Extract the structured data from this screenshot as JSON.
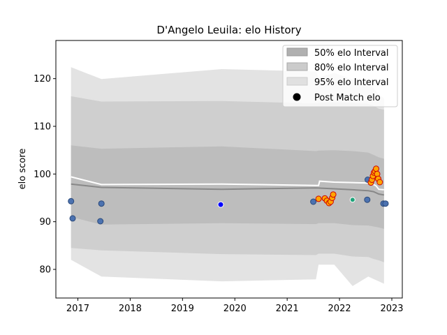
{
  "chart_data": {
    "type": "area",
    "title": "D'Angelo Leuila: elo History",
    "xlabel": "",
    "ylabel": "elo score",
    "xlim": [
      2016.58,
      2023.2
    ],
    "ylim": [
      74,
      128
    ],
    "x_ticks": [
      2017,
      2018,
      2019,
      2020,
      2021,
      2022,
      2023
    ],
    "y_ticks": [
      80,
      90,
      100,
      110,
      120
    ],
    "legend": {
      "placement": "top-right",
      "entries": [
        "50% elo Interval",
        "80% elo Interval",
        "95% elo Interval",
        "Post Match elo"
      ]
    },
    "bands": [
      {
        "name": "95% elo Interval",
        "color": "#e3e3e3",
        "x": [
          2016.87,
          2017.45,
          2019.75,
          2021.55,
          2021.6,
          2021.9,
          2022.25,
          2022.55,
          2022.65,
          2022.75,
          2022.85
        ],
        "upper": [
          122.4,
          119.9,
          122.0,
          121.5,
          120.2,
          121.2,
          119.8,
          118.8,
          118.0,
          116.6,
          115.9
        ],
        "lower": [
          82.0,
          78.5,
          77.5,
          77.9,
          81.0,
          81.0,
          76.5,
          78.5,
          78.0,
          77.5,
          77.0
        ]
      },
      {
        "name": "80% elo Interval",
        "color": "#cfcfcf",
        "x": [
          2016.87,
          2017.45,
          2019.75,
          2021.55,
          2021.6,
          2021.9,
          2022.25,
          2022.55,
          2022.65,
          2022.75,
          2022.85
        ],
        "upper": [
          116.3,
          115.2,
          115.3,
          114.8,
          114.9,
          115.0,
          114.9,
          114.7,
          114.3,
          113.7,
          113.5
        ],
        "lower": [
          84.5,
          84.0,
          83.2,
          83.0,
          83.3,
          83.3,
          82.7,
          82.6,
          82.2,
          81.9,
          81.5
        ]
      },
      {
        "name": "50% elo Interval",
        "color": "#bdbdbd",
        "x": [
          2016.87,
          2017.45,
          2019.75,
          2021.55,
          2021.6,
          2021.9,
          2022.25,
          2022.55,
          2022.65,
          2022.75,
          2022.85
        ],
        "upper": [
          106.0,
          105.3,
          105.8,
          104.8,
          104.9,
          105.0,
          104.8,
          104.5,
          104.0,
          103.5,
          103.2
        ],
        "lower": [
          91.0,
          89.4,
          89.7,
          89.5,
          89.7,
          89.7,
          89.3,
          89.2,
          89.0,
          88.8,
          88.5
        ]
      }
    ],
    "lines": [
      {
        "name": "mean",
        "color": "#ffffff",
        "x": [
          2016.87,
          2017.45,
          2019.75,
          2021.55,
          2021.6,
          2021.62,
          2021.9,
          2022.25,
          2022.55,
          2022.62,
          2022.7,
          2022.75,
          2022.85
        ],
        "y": [
          99.4,
          97.8,
          97.9,
          97.6,
          97.6,
          98.5,
          98.3,
          98.2,
          98.1,
          98.0,
          97.5,
          96.8,
          96.7
        ]
      },
      {
        "name": "median",
        "color": "#888888",
        "x": [
          2016.87,
          2017.45,
          2019.75,
          2021.55,
          2021.9,
          2022.25,
          2022.55,
          2022.65,
          2022.75,
          2022.85
        ],
        "y": [
          97.9,
          97.2,
          96.8,
          97.1,
          96.9,
          96.7,
          96.5,
          96.3,
          95.8,
          95.6
        ]
      }
    ],
    "points": [
      {
        "x": 2016.87,
        "y": 94.3,
        "color": "#4c72b0",
        "edge": "#2b4a7a",
        "r": 4
      },
      {
        "x": 2016.9,
        "y": 90.7,
        "color": "#4c72b0",
        "edge": "#2b4a7a",
        "r": 4
      },
      {
        "x": 2017.45,
        "y": 93.8,
        "color": "#4c72b0",
        "edge": "#2b4a7a",
        "r": 4
      },
      {
        "x": 2017.43,
        "y": 90.1,
        "color": "#4c72b0",
        "edge": "#2b4a7a",
        "r": 4
      },
      {
        "x": 2019.73,
        "y": 93.6,
        "color": "#0000ff",
        "edge": "#ffffff",
        "r": 4
      },
      {
        "x": 2021.5,
        "y": 94.2,
        "color": "#4c72b0",
        "edge": "#2b4a7a",
        "r": 4
      },
      {
        "x": 2021.6,
        "y": 94.8,
        "color": "#ffa500",
        "edge": "#cc0000",
        "r": 4
      },
      {
        "x": 2021.72,
        "y": 94.9,
        "color": "#ffa500",
        "edge": "#cc0000",
        "r": 4
      },
      {
        "x": 2021.76,
        "y": 94.4,
        "color": "#ffa500",
        "edge": "#cc0000",
        "r": 4
      },
      {
        "x": 2021.8,
        "y": 93.9,
        "color": "#ffa500",
        "edge": "#cc0000",
        "r": 4
      },
      {
        "x": 2021.83,
        "y": 94.2,
        "color": "#ffa500",
        "edge": "#cc0000",
        "r": 4
      },
      {
        "x": 2021.86,
        "y": 95.0,
        "color": "#ffa500",
        "edge": "#cc0000",
        "r": 4
      },
      {
        "x": 2021.88,
        "y": 95.7,
        "color": "#ffa500",
        "edge": "#cc0000",
        "r": 4
      },
      {
        "x": 2022.25,
        "y": 94.6,
        "color": "#1fa37a",
        "edge": "#ffffff",
        "r": 3.5
      },
      {
        "x": 2022.54,
        "y": 98.8,
        "color": "#4c72b0",
        "edge": "#2b4a7a",
        "r": 4
      },
      {
        "x": 2022.53,
        "y": 94.6,
        "color": "#4c72b0",
        "edge": "#2b4a7a",
        "r": 4
      },
      {
        "x": 2022.6,
        "y": 98.2,
        "color": "#ffa500",
        "edge": "#cc0000",
        "r": 4
      },
      {
        "x": 2022.62,
        "y": 98.8,
        "color": "#ffa500",
        "edge": "#cc0000",
        "r": 4
      },
      {
        "x": 2022.64,
        "y": 99.6,
        "color": "#ffa500",
        "edge": "#cc0000",
        "r": 4
      },
      {
        "x": 2022.66,
        "y": 100.3,
        "color": "#ffa500",
        "edge": "#cc0000",
        "r": 4
      },
      {
        "x": 2022.68,
        "y": 100.6,
        "color": "#ffa500",
        "edge": "#cc0000",
        "r": 4
      },
      {
        "x": 2022.7,
        "y": 101.1,
        "color": "#ffa500",
        "edge": "#cc0000",
        "r": 4
      },
      {
        "x": 2022.72,
        "y": 100.0,
        "color": "#ffa500",
        "edge": "#cc0000",
        "r": 4
      },
      {
        "x": 2022.74,
        "y": 99.0,
        "color": "#ffa500",
        "edge": "#cc0000",
        "r": 4
      },
      {
        "x": 2022.77,
        "y": 98.3,
        "color": "#ffa500",
        "edge": "#cc0000",
        "r": 4
      },
      {
        "x": 2022.84,
        "y": 93.8,
        "color": "#4c72b0",
        "edge": "#2b4a7a",
        "r": 4
      },
      {
        "x": 2022.88,
        "y": 93.8,
        "color": "#4c72b0",
        "edge": "#2b4a7a",
        "r": 4
      }
    ],
    "grid": false
  }
}
